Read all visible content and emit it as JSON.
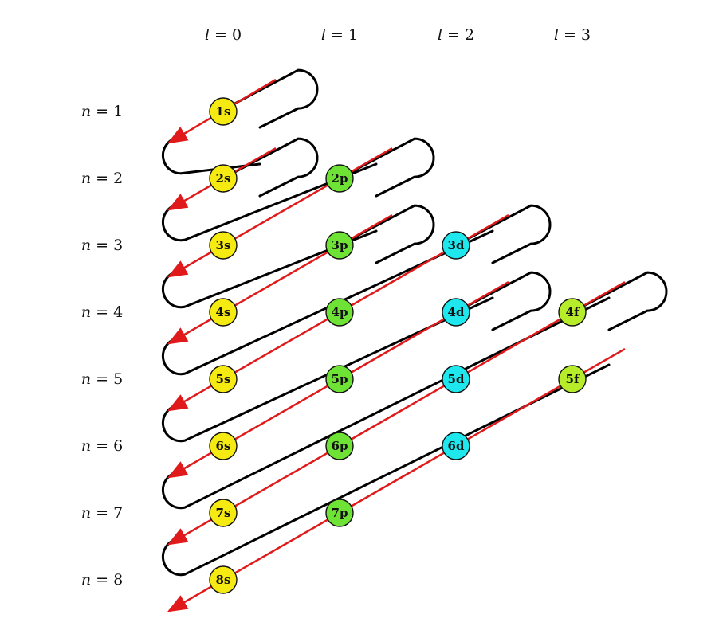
{
  "column_labels": [
    {
      "var": "l",
      "eq": " = ",
      "num": "0"
    },
    {
      "var": "l",
      "eq": " = ",
      "num": "1"
    },
    {
      "var": "l",
      "eq": " = ",
      "num": "2"
    },
    {
      "var": "l",
      "eq": " = ",
      "num": "3"
    }
  ],
  "row_labels": [
    {
      "var": "n",
      "eq": " = ",
      "num": "1"
    },
    {
      "var": "n",
      "eq": " = ",
      "num": "2"
    },
    {
      "var": "n",
      "eq": " = ",
      "num": "3"
    },
    {
      "var": "n",
      "eq": " = ",
      "num": "4"
    },
    {
      "var": "n",
      "eq": " = ",
      "num": "5"
    },
    {
      "var": "n",
      "eq": " = ",
      "num": "6"
    },
    {
      "var": "n",
      "eq": " = ",
      "num": "7"
    },
    {
      "var": "n",
      "eq": " = ",
      "num": "8"
    }
  ],
  "orbitals": [
    [
      "1s"
    ],
    [
      "2s",
      "2p"
    ],
    [
      "3s",
      "3p",
      "3d"
    ],
    [
      "4s",
      "4p",
      "4d",
      "4f"
    ],
    [
      "5s",
      "5p",
      "5d",
      "5f"
    ],
    [
      "6s",
      "6p",
      "6d"
    ],
    [
      "7s",
      "7p"
    ],
    [
      "8s"
    ]
  ],
  "colors": {
    "s": "#f5ea12",
    "p": "#6fe335",
    "d": "#1ee8ee",
    "f": "#b6ec2a",
    "arrow": "#e01a1a",
    "connector": "#000000"
  }
}
